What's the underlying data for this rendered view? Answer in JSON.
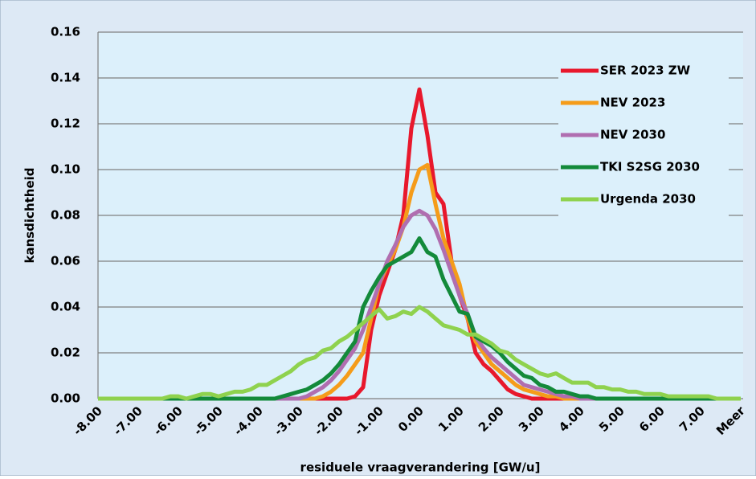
{
  "chart_data": {
    "type": "line",
    "x_label": "residuele vraagverandering [GW/u]",
    "y_label": "kansdichtheid",
    "categories": [
      "-8.00",
      null,
      null,
      null,
      null,
      "-7.00",
      null,
      null,
      null,
      null,
      "-6.00",
      null,
      null,
      null,
      null,
      "-5.00",
      null,
      null,
      null,
      null,
      "-4.00",
      null,
      null,
      null,
      null,
      "-3.00",
      null,
      null,
      null,
      null,
      "-2.00",
      null,
      null,
      null,
      null,
      "-1.00",
      null,
      null,
      null,
      null,
      "0.00",
      null,
      null,
      null,
      null,
      "1.00",
      null,
      null,
      null,
      null,
      "2.00",
      null,
      null,
      null,
      null,
      "3.00",
      null,
      null,
      null,
      null,
      "4.00",
      null,
      null,
      null,
      null,
      "5.00",
      null,
      null,
      null,
      null,
      "6.00",
      null,
      null,
      null,
      null,
      "7.00",
      null,
      null,
      null,
      null,
      "Meer"
    ],
    "series": [
      {
        "name": "SER 2023 ZW",
        "color": "#e8182c",
        "values": [
          0,
          0,
          0,
          0,
          0,
          0,
          0,
          0,
          0,
          0,
          0,
          0,
          0,
          0,
          0,
          0,
          0,
          0,
          0,
          0,
          0,
          0,
          0,
          0,
          0,
          0,
          0,
          0,
          0,
          0,
          0,
          0,
          0.001,
          0.005,
          0.03,
          0.045,
          0.055,
          0.065,
          0.08,
          0.118,
          0.135,
          0.115,
          0.09,
          0.085,
          0.06,
          0.045,
          0.035,
          0.02,
          0.015,
          0.012,
          0.008,
          0.004,
          0.002,
          0.001,
          0,
          0,
          0,
          0,
          0,
          0,
          0,
          0,
          0,
          0,
          0,
          0,
          0,
          0,
          0,
          0,
          0,
          0,
          0,
          0,
          0,
          0,
          0,
          0,
          0,
          0,
          0
        ]
      },
      {
        "name": "NEV 2023",
        "color": "#f59c1a",
        "values": [
          0,
          0,
          0,
          0,
          0,
          0,
          0,
          0,
          0,
          0,
          0,
          0,
          0,
          0,
          0,
          0,
          0,
          0,
          0,
          0,
          0,
          0,
          0,
          0,
          0,
          0,
          0,
          0,
          0.001,
          0.003,
          0.006,
          0.01,
          0.015,
          0.02,
          0.035,
          0.05,
          0.058,
          0.065,
          0.075,
          0.09,
          0.1,
          0.102,
          0.085,
          0.07,
          0.06,
          0.05,
          0.035,
          0.025,
          0.02,
          0.015,
          0.012,
          0.009,
          0.006,
          0.004,
          0.003,
          0.002,
          0.001,
          0.001,
          0,
          0,
          0,
          0,
          0,
          0,
          0,
          0,
          0,
          0,
          0,
          0,
          0,
          0,
          0,
          0,
          0,
          0,
          0,
          0,
          0,
          0,
          0
        ]
      },
      {
        "name": "NEV 2030",
        "color": "#b06eb0",
        "values": [
          0,
          0,
          0,
          0,
          0,
          0,
          0,
          0,
          0,
          0,
          0,
          0,
          0,
          0,
          0,
          0,
          0,
          0,
          0,
          0,
          0,
          0,
          0,
          0,
          0,
          0,
          0.001,
          0.003,
          0.005,
          0.008,
          0.012,
          0.017,
          0.022,
          0.03,
          0.04,
          0.05,
          0.06,
          0.067,
          0.075,
          0.08,
          0.082,
          0.08,
          0.074,
          0.065,
          0.055,
          0.045,
          0.037,
          0.027,
          0.022,
          0.018,
          0.015,
          0.012,
          0.009,
          0.006,
          0.005,
          0.004,
          0.003,
          0.002,
          0.001,
          0.001,
          0,
          0,
          0,
          0,
          0,
          0,
          0,
          0,
          0,
          0,
          0,
          0,
          0,
          0,
          0,
          0,
          0,
          0,
          0,
          0,
          0
        ]
      },
      {
        "name": "TKI S2SG 2030",
        "color": "#138a3a",
        "values": [
          0,
          0,
          0,
          0,
          0,
          0,
          0,
          0,
          0,
          0,
          0,
          0,
          0,
          0,
          0,
          0,
          0,
          0,
          0,
          0,
          0,
          0,
          0,
          0.001,
          0.002,
          0.003,
          0.004,
          0.006,
          0.008,
          0.011,
          0.015,
          0.02,
          0.025,
          0.04,
          0.047,
          0.053,
          0.058,
          0.06,
          0.062,
          0.064,
          0.07,
          0.064,
          0.062,
          0.052,
          0.045,
          0.038,
          0.037,
          0.027,
          0.025,
          0.023,
          0.02,
          0.016,
          0.013,
          0.01,
          0.009,
          0.006,
          0.005,
          0.003,
          0.003,
          0.002,
          0.001,
          0.001,
          0,
          0,
          0,
          0,
          0,
          0,
          0,
          0,
          0,
          0,
          0,
          0,
          0,
          0,
          0,
          0,
          0,
          0,
          0
        ]
      },
      {
        "name": "Urgenda 2030",
        "color": "#8fd24e",
        "values": [
          0,
          0,
          0,
          0,
          0,
          0,
          0,
          0,
          0,
          0.001,
          0.001,
          0,
          0.001,
          0.002,
          0.002,
          0.001,
          0.002,
          0.003,
          0.003,
          0.004,
          0.006,
          0.006,
          0.008,
          0.01,
          0.012,
          0.015,
          0.017,
          0.018,
          0.021,
          0.022,
          0.025,
          0.027,
          0.03,
          0.033,
          0.036,
          0.039,
          0.035,
          0.036,
          0.038,
          0.037,
          0.04,
          0.038,
          0.035,
          0.032,
          0.031,
          0.03,
          0.028,
          0.028,
          0.026,
          0.024,
          0.021,
          0.02,
          0.017,
          0.015,
          0.013,
          0.011,
          0.01,
          0.011,
          0.009,
          0.007,
          0.007,
          0.007,
          0.005,
          0.005,
          0.004,
          0.004,
          0.003,
          0.003,
          0.002,
          0.002,
          0.002,
          0.001,
          0.001,
          0.001,
          0.001,
          0.001,
          0.001,
          0,
          0,
          0,
          0
        ]
      }
    ],
    "ylim": [
      0,
      0.16
    ],
    "yticks": [
      {
        "value": 0,
        "label": "0.00"
      },
      {
        "value": 0.02,
        "label": "0.02"
      },
      {
        "value": 0.04,
        "label": "0.04"
      },
      {
        "value": 0.06,
        "label": "0.06"
      },
      {
        "value": 0.08,
        "label": "0.08"
      },
      {
        "value": 0.1,
        "label": "0.10"
      },
      {
        "value": 0.12,
        "label": "0.12"
      },
      {
        "value": 0.14,
        "label": "0.14"
      },
      {
        "value": 0.16,
        "label": "0.16"
      }
    ],
    "grid": true,
    "legend": "upper right"
  }
}
